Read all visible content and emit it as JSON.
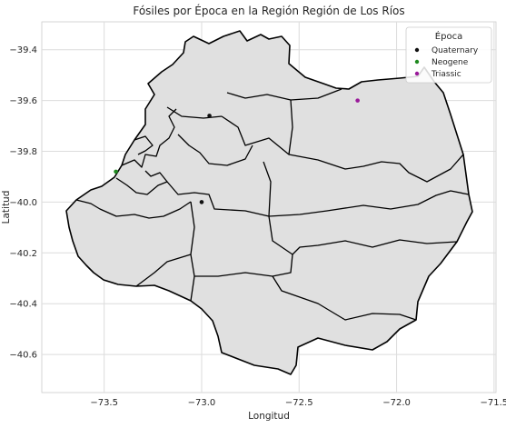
{
  "chart_data": {
    "type": "scatter",
    "title": "Fósiles por Época en la Región Región de Los Ríos",
    "xlabel": "Longitud",
    "ylabel": "Latitud",
    "xlim": [
      -73.82,
      -71.49
    ],
    "ylim": [
      -40.75,
      -39.29
    ],
    "xticks": [
      -73.5,
      -73.0,
      -72.5,
      -72.0,
      -71.5
    ],
    "xtick_labels": [
      "−73.5",
      "−73.0",
      "−72.5",
      "−72.0",
      "−71.5"
    ],
    "yticks": [
      -39.4,
      -39.6,
      -39.8,
      -40.0,
      -40.2,
      -40.4,
      -40.6
    ],
    "ytick_labels": [
      "−39.4",
      "−39.6",
      "−39.8",
      "−40.0",
      "−40.2",
      "−40.4",
      "−40.6"
    ],
    "grid": true,
    "legend": {
      "title": "Época",
      "placement": "top-right",
      "entries": [
        {
          "label": "Quaternary",
          "color": "#111111"
        },
        {
          "label": "Neogene",
          "color": "#1f8a1f"
        },
        {
          "label": "Triassic",
          "color": "#9a1a9a"
        }
      ]
    },
    "series": [
      {
        "name": "Quaternary",
        "color": "#111111",
        "points": [
          {
            "x": -72.96,
            "y": -39.66
          },
          {
            "x": -73.0,
            "y": -40.0
          }
        ]
      },
      {
        "name": "Neogene",
        "color": "#1f8a1f",
        "points": [
          {
            "x": -73.44,
            "y": -39.88
          }
        ]
      },
      {
        "name": "Triassic",
        "color": "#9a1a9a",
        "points": [
          {
            "x": -72.2,
            "y": -39.6
          }
        ]
      }
    ],
    "region_fill": "#e0e0e0",
    "border_color": "#000000"
  }
}
